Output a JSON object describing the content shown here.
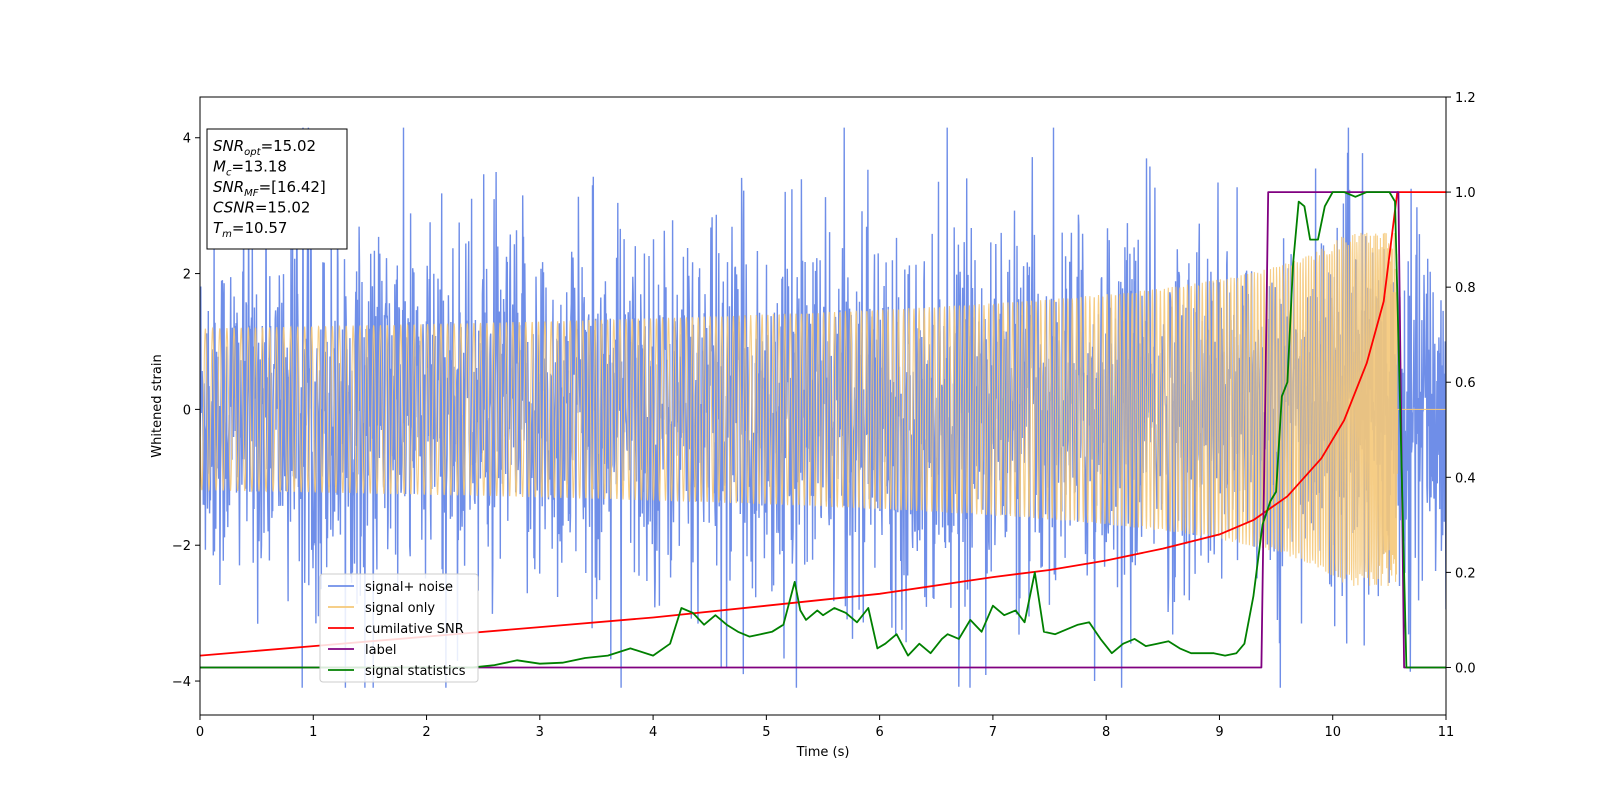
{
  "chart_data": {
    "type": "line",
    "xlabel": "Time (s)",
    "ylabel": "Whitened strain",
    "xlim": [
      0,
      11
    ],
    "ylim_left": [
      -4.5,
      4.6
    ],
    "ylim_right": [
      -0.1,
      1.2
    ],
    "xticks": [
      "0",
      "1",
      "2",
      "3",
      "4",
      "5",
      "6",
      "7",
      "8",
      "9",
      "10",
      "11"
    ],
    "yticks_left": [
      "4",
      "2",
      "0",
      "−2",
      "−4"
    ],
    "yticks_right": [
      "1.2",
      "1.0",
      "0.8",
      "0.6",
      "0.4",
      "0.2",
      "0.0"
    ],
    "legend": {
      "placement": "lower-left",
      "entries": [
        {
          "label": "signal+ noise",
          "color": "#6f8ee8"
        },
        {
          "label": "signal only",
          "color": "#f5c878"
        },
        {
          "label": "cumilative SNR",
          "color": "#ff0000"
        },
        {
          "label": "label",
          "color": "#800080"
        },
        {
          "label": "signal statistics",
          "color": "#008000"
        }
      ]
    },
    "annotation": {
      "lines": [
        {
          "base": "SNR",
          "sub": "opt",
          "value": "=15.02"
        },
        {
          "base": "M",
          "sub": "c",
          "value": "=13.18"
        },
        {
          "base": "SNR",
          "sub": "MF",
          "value": "=[16.42]"
        },
        {
          "base": "CSNR",
          "sub": "",
          "value": "=15.02"
        },
        {
          "base": "T",
          "sub": "m",
          "value": "=10.57"
        }
      ]
    },
    "series": [
      {
        "name": "signal+ noise",
        "axis": "left",
        "color": "#6f8ee8",
        "noise_amplitude": 1.3,
        "range": [
          -4.1,
          4.15
        ]
      },
      {
        "name": "signal only",
        "axis": "left",
        "color": "#f5c878",
        "merger_time": 10.57,
        "peak_amplitude": 2.6
      },
      {
        "name": "cumilative SNR",
        "axis": "right",
        "color": "#ff0000",
        "x": [
          0,
          1,
          2,
          3,
          4,
          5,
          6,
          7,
          7.5,
          8,
          8.5,
          9,
          9.3,
          9.6,
          9.9,
          10.1,
          10.3,
          10.45,
          10.57,
          10.6,
          11
        ],
        "y": [
          0.025,
          0.045,
          0.065,
          0.085,
          0.105,
          0.13,
          0.155,
          0.19,
          0.205,
          0.225,
          0.25,
          0.28,
          0.31,
          0.36,
          0.44,
          0.52,
          0.64,
          0.77,
          1.0,
          1.0,
          1.0
        ]
      },
      {
        "name": "label",
        "axis": "right",
        "color": "#800080",
        "x": [
          0,
          9.37,
          9.43,
          10.58,
          10.63,
          11
        ],
        "y": [
          0.0,
          0.0,
          1.0,
          1.0,
          0.0,
          0.0
        ]
      },
      {
        "name": "signal statistics",
        "axis": "right",
        "color": "#008000",
        "x": [
          0,
          2.4,
          2.6,
          2.8,
          3.0,
          3.2,
          3.4,
          3.6,
          3.8,
          4.0,
          4.15,
          4.25,
          4.35,
          4.45,
          4.55,
          4.65,
          4.75,
          4.85,
          4.95,
          5.05,
          5.15,
          5.25,
          5.3,
          5.35,
          5.45,
          5.5,
          5.6,
          5.7,
          5.8,
          5.9,
          5.98,
          6.05,
          6.15,
          6.25,
          6.35,
          6.45,
          6.55,
          6.6,
          6.7,
          6.8,
          6.9,
          7.0,
          7.1,
          7.2,
          7.28,
          7.37,
          7.45,
          7.55,
          7.65,
          7.75,
          7.85,
          7.95,
          8.05,
          8.15,
          8.25,
          8.35,
          8.45,
          8.55,
          8.65,
          8.75,
          8.85,
          8.95,
          9.05,
          9.15,
          9.22,
          9.3,
          9.38,
          9.45,
          9.5,
          9.55,
          9.6,
          9.65,
          9.7,
          9.75,
          9.8,
          9.87,
          9.93,
          10.0,
          10.1,
          10.2,
          10.3,
          10.4,
          10.5,
          10.55,
          10.6,
          10.65,
          11
        ],
        "y": [
          0.0,
          0.0,
          0.005,
          0.015,
          0.008,
          0.01,
          0.02,
          0.025,
          0.04,
          0.025,
          0.05,
          0.125,
          0.115,
          0.09,
          0.11,
          0.09,
          0.075,
          0.065,
          0.07,
          0.075,
          0.09,
          0.18,
          0.12,
          0.1,
          0.12,
          0.11,
          0.125,
          0.115,
          0.095,
          0.125,
          0.04,
          0.05,
          0.07,
          0.025,
          0.05,
          0.03,
          0.06,
          0.07,
          0.06,
          0.1,
          0.075,
          0.13,
          0.11,
          0.12,
          0.095,
          0.2,
          0.075,
          0.07,
          0.08,
          0.09,
          0.095,
          0.06,
          0.03,
          0.05,
          0.06,
          0.045,
          0.05,
          0.055,
          0.04,
          0.03,
          0.03,
          0.03,
          0.025,
          0.03,
          0.05,
          0.15,
          0.3,
          0.35,
          0.37,
          0.57,
          0.6,
          0.85,
          0.98,
          0.97,
          0.9,
          0.9,
          0.97,
          1.0,
          1.0,
          0.99,
          1.0,
          1.0,
          1.0,
          0.98,
          0.5,
          0.0,
          0.0
        ]
      }
    ]
  }
}
